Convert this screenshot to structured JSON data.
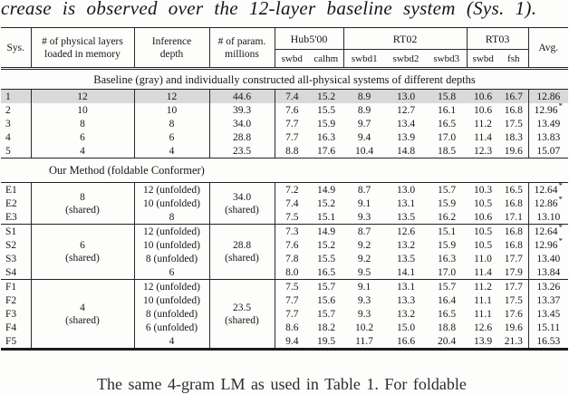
{
  "top_caption": "crease is observed over the 12-layer baseline system (Sys. 1).",
  "bottom_caption": "The same 4-gram LM as used in Table 1. For foldable",
  "table": {
    "highlight_color": "#d9d9d9",
    "footnote_marker": "*",
    "header": {
      "sys": "Sys.",
      "physical_layers": [
        "# of physical layers",
        "loaded in memory"
      ],
      "inference_depth": [
        "Inference",
        "depth"
      ],
      "param_millions": [
        "# of param.",
        "millions"
      ],
      "groups": [
        {
          "label": "Hub5'00",
          "subs": [
            "swbd",
            "calhm"
          ]
        },
        {
          "label": "RT02",
          "subs": [
            "swbd1",
            "swbd2",
            "swbd3"
          ]
        },
        {
          "label": "RT03",
          "subs": [
            "swbd",
            "fsh"
          ]
        }
      ],
      "avg": "Avg."
    },
    "sections": [
      {
        "id": "baseline",
        "title": "Baseline (gray) and individually constructed all-physical systems of different depths",
        "title_style": "center",
        "shared": false,
        "rows": [
          {
            "sys": "1",
            "layers": "12",
            "depth": "12",
            "param": "44.6",
            "scores": [
              "7.4",
              "15.2",
              "8.9",
              "13.0",
              "15.8",
              "10.6",
              "16.7"
            ],
            "avg": "12.86",
            "star": false,
            "highlight": true
          },
          {
            "sys": "2",
            "layers": "10",
            "depth": "10",
            "param": "39.3",
            "scores": [
              "7.6",
              "15.5",
              "8.9",
              "12.7",
              "16.1",
              "10.6",
              "16.8"
            ],
            "avg": "12.96",
            "star": true,
            "highlight": false
          },
          {
            "sys": "3",
            "layers": "8",
            "depth": "8",
            "param": "34.0",
            "scores": [
              "7.7",
              "15.9",
              "9.7",
              "13.4",
              "16.5",
              "11.2",
              "17.5"
            ],
            "avg": "13.49",
            "star": false,
            "highlight": false
          },
          {
            "sys": "4",
            "layers": "6",
            "depth": "6",
            "param": "28.8",
            "scores": [
              "7.7",
              "16.3",
              "9.4",
              "13.9",
              "17.0",
              "11.4",
              "18.3"
            ],
            "avg": "13.83",
            "star": false,
            "highlight": false
          },
          {
            "sys": "5",
            "layers": "4",
            "depth": "4",
            "param": "23.5",
            "scores": [
              "8.8",
              "17.6",
              "10.4",
              "14.8",
              "18.5",
              "12.3",
              "19.6"
            ],
            "avg": "15.07",
            "star": false,
            "highlight": false
          }
        ]
      },
      {
        "id": "method-e",
        "title": "Our Method (foldable Conformer)",
        "title_style": "offset",
        "shared": true,
        "shared_layers": [
          "8",
          "(shared)"
        ],
        "shared_param": [
          "34.0",
          "(shared)"
        ],
        "rows": [
          {
            "sys": "E1",
            "depth": "12 (unfolded)",
            "scores": [
              "7.2",
              "14.9",
              "8.7",
              "13.0",
              "15.7",
              "10.3",
              "16.5"
            ],
            "avg": "12.64",
            "star": true,
            "highlight": false
          },
          {
            "sys": "E2",
            "depth": "10 (unfolded)",
            "scores": [
              "7.4",
              "15.2",
              "9.1",
              "13.1",
              "15.9",
              "10.5",
              "16.8"
            ],
            "avg": "12.86",
            "star": true,
            "highlight": false
          },
          {
            "sys": "E3",
            "depth": "8",
            "scores": [
              "7.5",
              "15.1",
              "9.3",
              "13.5",
              "16.2",
              "10.6",
              "17.1"
            ],
            "avg": "13.10",
            "star": false,
            "highlight": false
          }
        ]
      },
      {
        "id": "method-s",
        "title": "",
        "title_style": "none",
        "shared": true,
        "shared_layers": [
          "6",
          "(shared)"
        ],
        "shared_param": [
          "28.8",
          "(shared)"
        ],
        "rows": [
          {
            "sys": "S1",
            "depth": "12 (unfolded)",
            "scores": [
              "7.3",
              "14.9",
              "8.7",
              "12.6",
              "15.1",
              "10.5",
              "16.8"
            ],
            "avg": "12.64",
            "star": true,
            "highlight": false
          },
          {
            "sys": "S2",
            "depth": "10 (unfolded)",
            "scores": [
              "7.6",
              "15.2",
              "9.2",
              "13.2",
              "15.9",
              "10.5",
              "16.8"
            ],
            "avg": "12.96",
            "star": true,
            "highlight": false
          },
          {
            "sys": "S3",
            "depth": "8 (unfolded)",
            "scores": [
              "7.8",
              "15.5",
              "9.2",
              "13.5",
              "16.3",
              "11.0",
              "17.7"
            ],
            "avg": "13.40",
            "star": false,
            "highlight": false
          },
          {
            "sys": "S4",
            "depth": "6",
            "scores": [
              "8.0",
              "16.5",
              "9.5",
              "14.1",
              "17.0",
              "11.4",
              "17.9"
            ],
            "avg": "13.84",
            "star": false,
            "highlight": false
          }
        ]
      },
      {
        "id": "method-f",
        "title": "",
        "title_style": "none",
        "shared": true,
        "shared_layers": [
          "4",
          "(shared)"
        ],
        "shared_param": [
          "23.5",
          "(shared)"
        ],
        "rows": [
          {
            "sys": "F1",
            "depth": "12 (unfolded)",
            "scores": [
              "7.5",
              "15.7",
              "9.1",
              "13.1",
              "15.7",
              "11.2",
              "17.7"
            ],
            "avg": "13.26",
            "star": false,
            "highlight": false
          },
          {
            "sys": "F2",
            "depth": "10 (unfolded)",
            "scores": [
              "7.7",
              "15.6",
              "9.3",
              "13.3",
              "16.4",
              "11.1",
              "17.5"
            ],
            "avg": "13.37",
            "star": false,
            "highlight": false
          },
          {
            "sys": "F3",
            "depth": "8 (unfolded)",
            "scores": [
              "7.7",
              "15.7",
              "9.3",
              "13.2",
              "16.5",
              "11.1",
              "17.6"
            ],
            "avg": "13.45",
            "star": false,
            "highlight": false
          },
          {
            "sys": "F4",
            "depth": "6 (unfolded)",
            "scores": [
              "8.6",
              "18.2",
              "10.2",
              "15.0",
              "18.8",
              "12.6",
              "19.6"
            ],
            "avg": "15.11",
            "star": false,
            "highlight": false
          },
          {
            "sys": "F5",
            "depth": "4",
            "scores": [
              "9.4",
              "19.5",
              "11.7",
              "16.6",
              "20.4",
              "13.9",
              "21.3"
            ],
            "avg": "16.53",
            "star": false,
            "highlight": false
          }
        ]
      }
    ]
  }
}
